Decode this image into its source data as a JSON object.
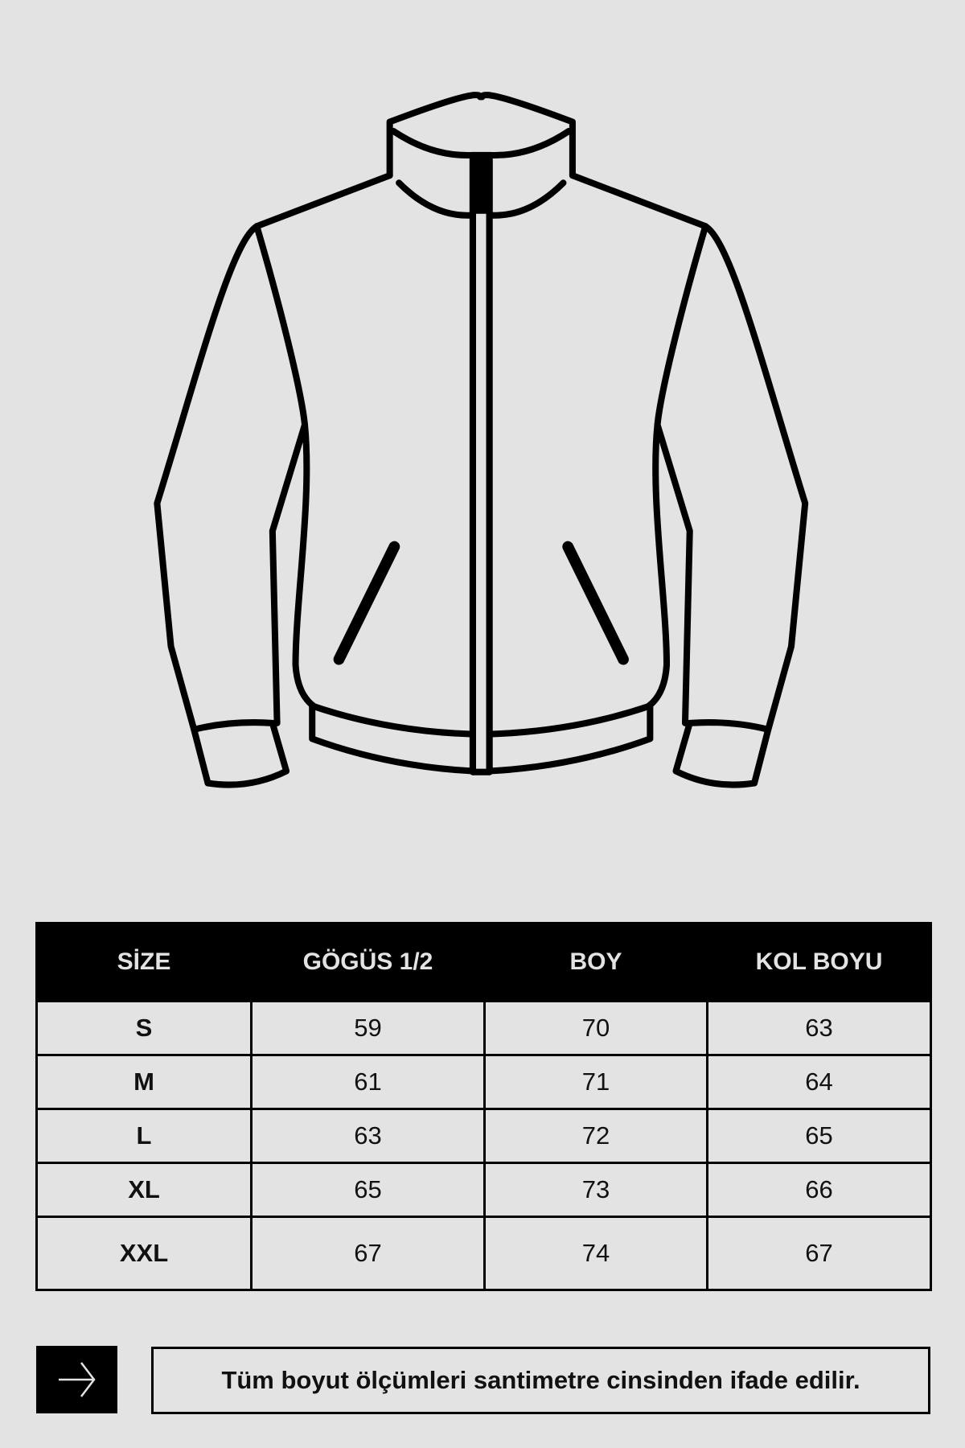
{
  "illustration": {
    "subject": "jacket-outline-icon"
  },
  "size_table": {
    "headers": [
      "SİZE",
      "GÖGÜS 1/2",
      "BOY",
      "KOL BOYU"
    ],
    "rows": [
      [
        "S",
        "59",
        "70",
        "63"
      ],
      [
        "M",
        "61",
        "71",
        "64"
      ],
      [
        "L",
        "63",
        "72",
        "65"
      ],
      [
        "XL",
        "65",
        "73",
        "66"
      ],
      [
        "XXL",
        "67",
        "74",
        "67"
      ]
    ]
  },
  "footer": {
    "icon": "arrow-right-icon",
    "note": "Tüm boyut ölçümleri santimetre cinsinden ifade edilir."
  }
}
